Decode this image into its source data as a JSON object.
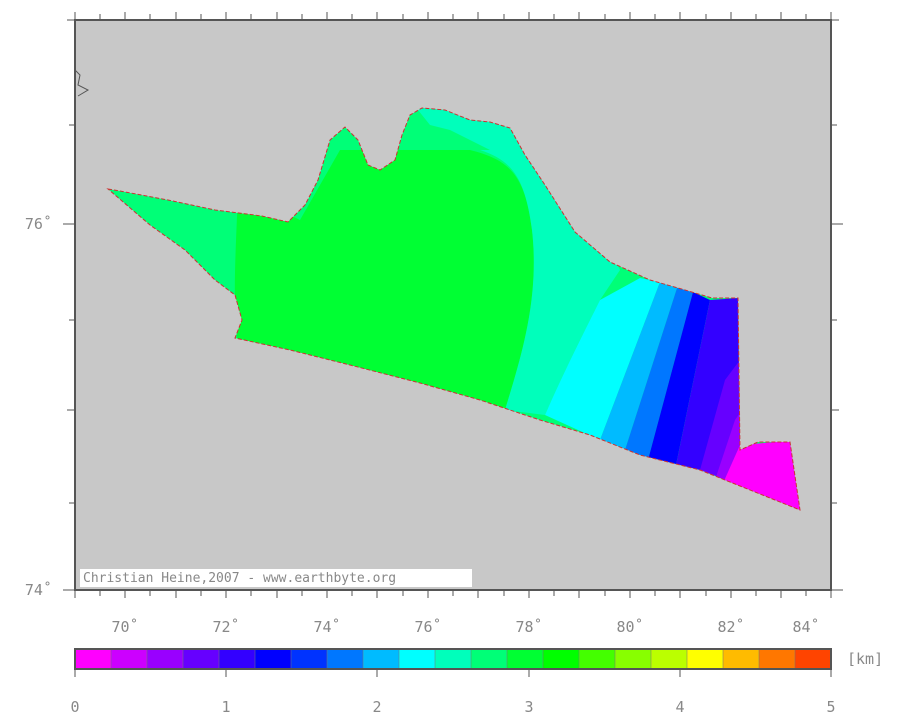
{
  "map": {
    "credit": "Christian Heine,2007 - www.earthbyte.org",
    "lon_labels": [
      "70˚",
      "72˚",
      "74˚",
      "76˚",
      "78˚",
      "80˚",
      "82˚",
      "84˚"
    ],
    "lat_labels": [
      "76˚",
      "74˚"
    ],
    "background_color": "#c8c8c8",
    "coastline_color": "#cc3333"
  },
  "colorbar": {
    "unit": "[km]",
    "labels": [
      "0",
      "1",
      "2",
      "3",
      "4",
      "5"
    ],
    "range": [
      0,
      5
    ],
    "colors": [
      "#ff00ff",
      "#cc00ff",
      "#9900ff",
      "#6600ff",
      "#3300ff",
      "#0000ff",
      "#0033ff",
      "#0077ff",
      "#00bbff",
      "#00ffff",
      "#00ffbb",
      "#00ff77",
      "#00ff33",
      "#00ff00",
      "#44ff00",
      "#88ff00",
      "#bbff00",
      "#ffff00",
      "#ffbb00",
      "#ff7700",
      "#ff4400"
    ]
  }
}
